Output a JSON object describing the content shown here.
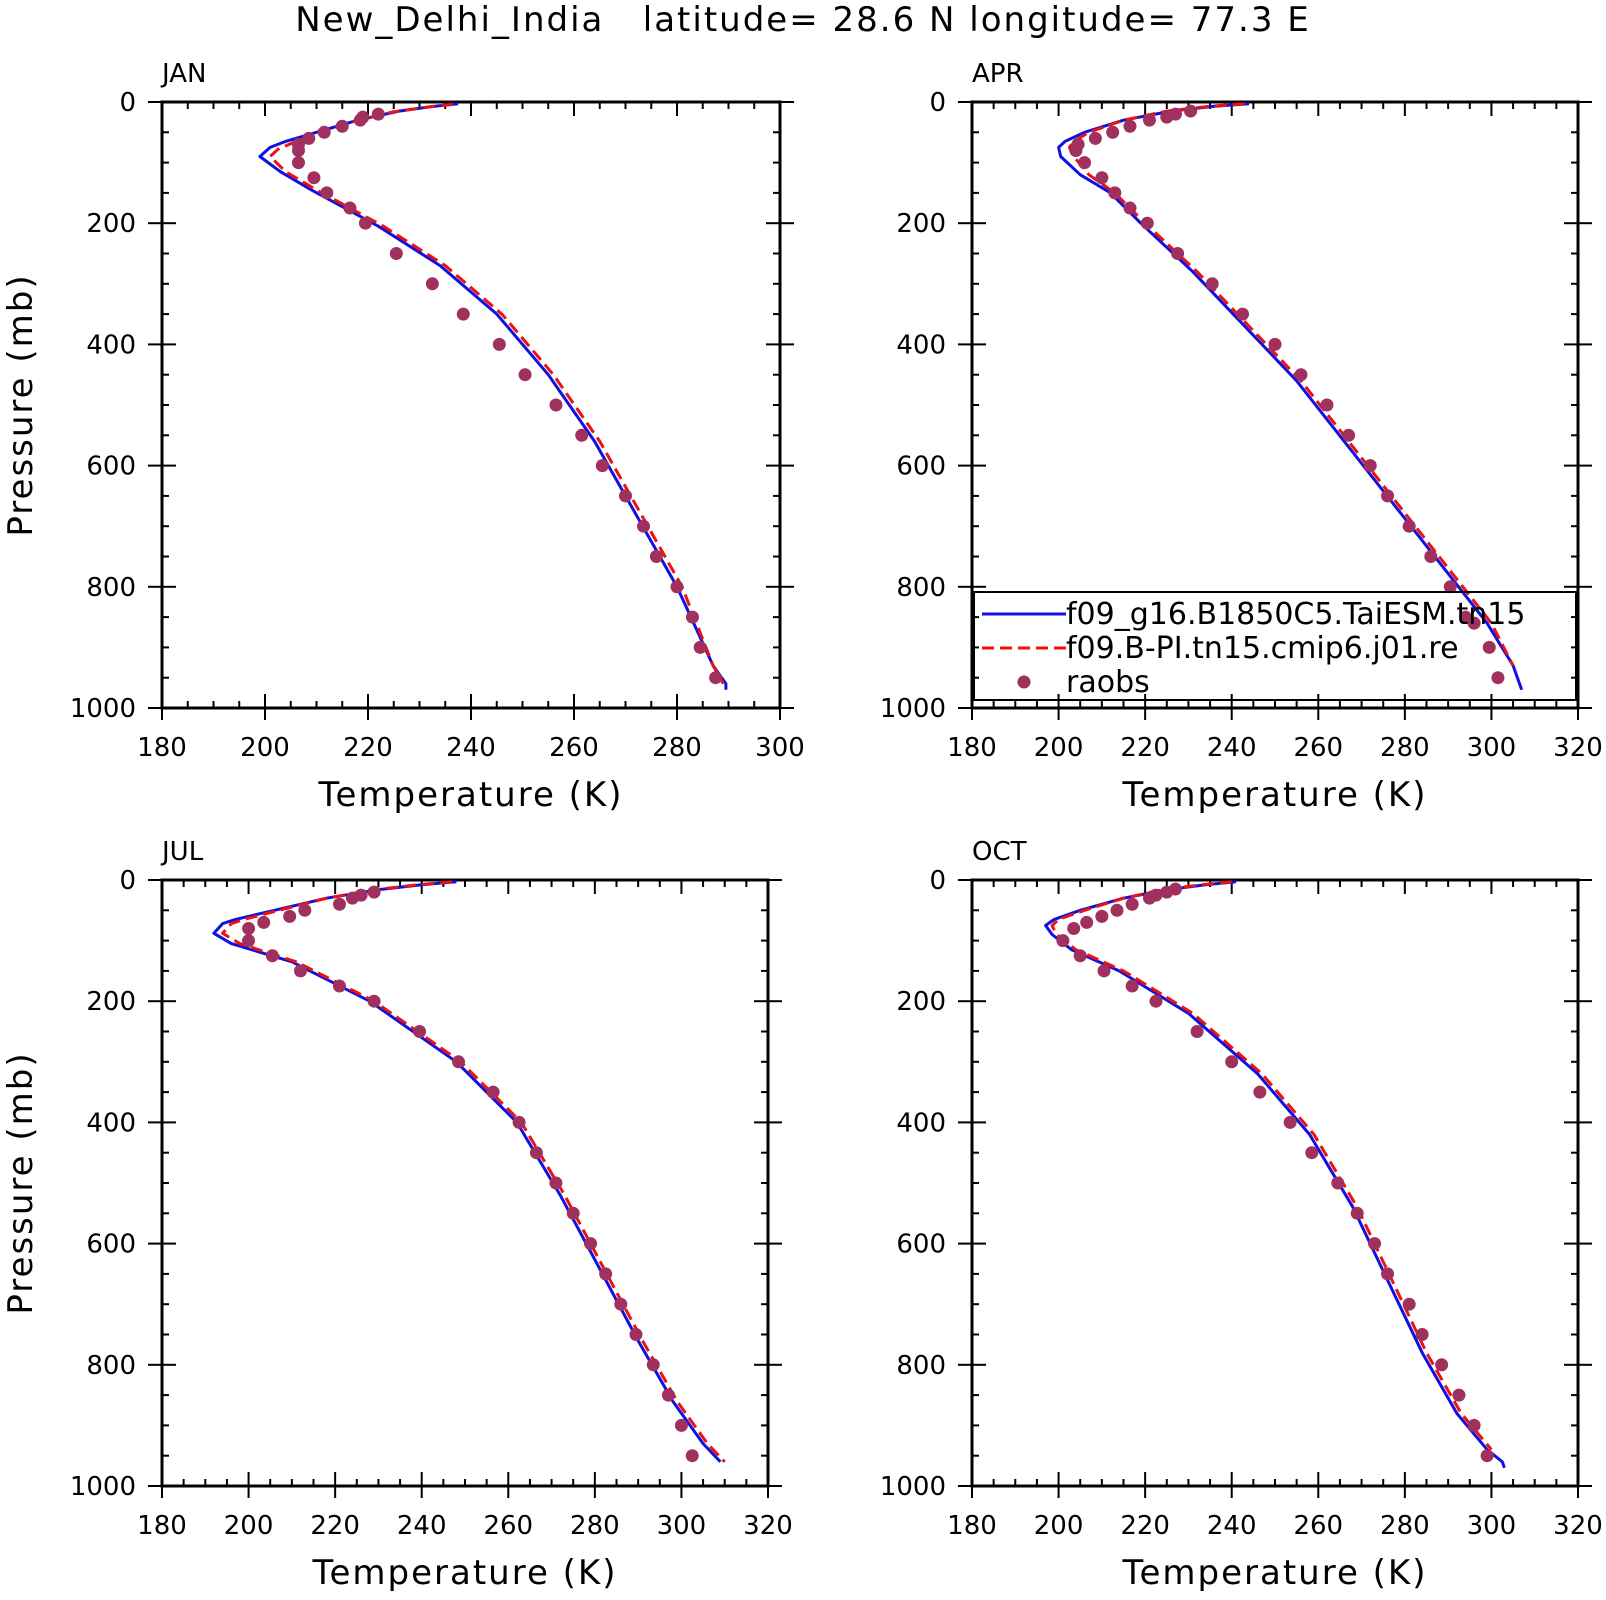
{
  "figure": {
    "title": "New_Delhi_India   latitude= 28.6 N longitude= 77.3 E"
  },
  "colors": {
    "model_a": "#1010e0",
    "model_b": "#ee1111",
    "obs": "#a0305e",
    "axes": "#000000"
  },
  "chart_data": [
    {
      "type": "line",
      "panel_label": "JAN",
      "xlabel": "Temperature (K)",
      "ylabel": "Pressure (mb)",
      "xlim": [
        180,
        300
      ],
      "ylim": [
        1000,
        0
      ],
      "y_inverted": true,
      "x_ticks": [
        180,
        200,
        220,
        240,
        260,
        280,
        300
      ],
      "y_ticks": [
        0,
        200,
        400,
        600,
        800,
        1000
      ],
      "legend": false,
      "series": [
        {
          "name": "f09_g16.B1850C5.TaiESM.tn15",
          "style": "solid",
          "x": [
            237.5,
            233,
            226,
            218,
            210,
            204,
            201,
            199,
            203,
            209,
            222,
            234,
            245,
            255,
            264,
            272,
            280,
            287,
            289.5,
            289.5
          ],
          "y": [
            3,
            7,
            15,
            30,
            50,
            65,
            75,
            90,
            115,
            145,
            205,
            270,
            350,
            450,
            560,
            680,
            800,
            930,
            960,
            970
          ]
        },
        {
          "name": "f09.B-PI.tn15.cmip6.j01.re",
          "style": "dashed",
          "x": [
            236.5,
            232,
            225,
            218,
            211,
            206,
            202.5,
            201,
            204,
            210,
            223,
            235,
            246,
            256,
            265,
            273,
            281,
            287,
            289
          ],
          "y": [
            4,
            8,
            16,
            30,
            50,
            65,
            78,
            90,
            115,
            145,
            205,
            270,
            350,
            450,
            560,
            680,
            800,
            930,
            960
          ]
        },
        {
          "name": "raobs",
          "style": "markers",
          "x": [
            222,
            219,
            218.5,
            215,
            211.5,
            208.5,
            206.5,
            206.5,
            206.5,
            209.5,
            212,
            216.5,
            219.5,
            225.5,
            232.5,
            238.5,
            245.5,
            250.5,
            256.5,
            261.5,
            265.5,
            270,
            273.5,
            276,
            280,
            283,
            284.5,
            287.5
          ],
          "y": [
            20,
            25,
            30,
            40,
            50,
            60,
            70,
            80,
            100,
            125,
            150,
            175,
            200,
            250,
            300,
            350,
            400,
            450,
            500,
            550,
            600,
            650,
            700,
            750,
            800,
            850,
            900,
            950
          ]
        }
      ]
    },
    {
      "type": "line",
      "panel_label": "APR",
      "xlabel": "Temperature (K)",
      "ylabel": "",
      "xlim": [
        180,
        320
      ],
      "ylim": [
        1000,
        0
      ],
      "y_inverted": true,
      "x_ticks": [
        180,
        200,
        220,
        240,
        260,
        280,
        300,
        320
      ],
      "y_ticks": [
        0,
        200,
        400,
        600,
        800,
        1000
      ],
      "legend": true,
      "legend_position": "lower-right",
      "legend_entries": [
        "f09_g16.B1850C5.TaiESM.tn15",
        "f09.B-PI.tn15.cmip6.j01.re",
        "raobs"
      ],
      "series": [
        {
          "name": "f09_g16.B1850C5.TaiESM.tn15",
          "style": "solid",
          "x": [
            244,
            236,
            226,
            215,
            206,
            201.5,
            200,
            200.5,
            205,
            212,
            219,
            231,
            243,
            255,
            266,
            277,
            288,
            299,
            305,
            307
          ],
          "y": [
            3,
            7,
            15,
            30,
            50,
            65,
            75,
            90,
            120,
            150,
            200,
            280,
            370,
            460,
            560,
            660,
            760,
            860,
            930,
            970
          ]
        },
        {
          "name": "f09.B-PI.tn15.cmip6.j01.re",
          "style": "dashed",
          "x": [
            243,
            235,
            225,
            215,
            207,
            203.5,
            202.5,
            203.5,
            207,
            213,
            220,
            232,
            244,
            256,
            267,
            278,
            289,
            300,
            305
          ],
          "y": [
            3,
            7,
            15,
            30,
            50,
            65,
            75,
            90,
            120,
            150,
            200,
            280,
            370,
            460,
            560,
            660,
            760,
            860,
            930
          ]
        },
        {
          "name": "raobs",
          "style": "markers",
          "x": [
            230.5,
            227,
            225,
            221,
            216.5,
            212.5,
            208.5,
            204.5,
            204,
            204.5,
            206,
            210,
            213,
            216.5,
            220.5,
            227.5,
            235.5,
            242.5,
            250,
            256,
            262,
            267,
            272,
            276,
            281,
            286,
            290.5,
            294,
            296,
            299.5,
            301.5
          ],
          "y": [
            15,
            20,
            25,
            30,
            40,
            50,
            60,
            70,
            80,
            70,
            100,
            125,
            150,
            175,
            200,
            250,
            300,
            350,
            400,
            450,
            500,
            550,
            600,
            650,
            700,
            750,
            800,
            850,
            860,
            900,
            950
          ]
        }
      ]
    },
    {
      "type": "line",
      "panel_label": "JUL",
      "xlabel": "Temperature (K)",
      "ylabel": "Pressure (mb)",
      "xlim": [
        180,
        320
      ],
      "ylim": [
        1000,
        0
      ],
      "y_inverted": true,
      "x_ticks": [
        180,
        200,
        220,
        240,
        260,
        280,
        300,
        320
      ],
      "y_ticks": [
        0,
        200,
        400,
        600,
        800,
        1000
      ],
      "legend": false,
      "series": [
        {
          "name": "f09_g16.B1850C5.TaiESM.tn15",
          "style": "solid",
          "x": [
            248,
            240,
            230,
            218,
            206,
            197,
            194,
            192,
            196,
            210,
            228,
            248,
            262,
            272,
            281,
            290,
            298,
            305,
            309
          ],
          "y": [
            3,
            8,
            16,
            30,
            50,
            65,
            72,
            88,
            105,
            135,
            200,
            300,
            400,
            520,
            640,
            760,
            860,
            930,
            960
          ]
        },
        {
          "name": "f09.B-PI.tn15.cmip6.j01.re",
          "style": "dashed",
          "x": [
            247,
            239,
            229,
            218,
            207,
            199,
            196,
            194,
            198,
            211,
            229,
            249,
            263,
            273,
            282,
            291,
            299,
            306,
            310
          ],
          "y": [
            3,
            8,
            16,
            30,
            50,
            65,
            72,
            88,
            105,
            135,
            200,
            300,
            400,
            520,
            640,
            760,
            860,
            930,
            960
          ]
        },
        {
          "name": "raobs",
          "style": "markers",
          "x": [
            229,
            226,
            224,
            221,
            213,
            209.5,
            203.5,
            200,
            200,
            205.5,
            212,
            221,
            229,
            239.5,
            248.5,
            256.5,
            262.5,
            266.5,
            271,
            275,
            279,
            282.5,
            286,
            289.5,
            293.5,
            297,
            300,
            302.5
          ],
          "y": [
            20,
            25,
            30,
            40,
            50,
            60,
            70,
            80,
            100,
            125,
            150,
            175,
            200,
            250,
            300,
            350,
            400,
            450,
            500,
            550,
            600,
            650,
            700,
            750,
            800,
            850,
            900,
            950
          ]
        }
      ]
    },
    {
      "type": "line",
      "panel_label": "OCT",
      "xlabel": "Temperature (K)",
      "ylabel": "",
      "xlim": [
        180,
        320
      ],
      "ylim": [
        1000,
        0
      ],
      "y_inverted": true,
      "x_ticks": [
        180,
        200,
        220,
        240,
        260,
        280,
        300,
        320
      ],
      "y_ticks": [
        0,
        200,
        400,
        600,
        800,
        1000
      ],
      "legend": false,
      "series": [
        {
          "name": "f09_g16.B1850C5.TaiESM.tn15",
          "style": "solid",
          "x": [
            241,
            234,
            225,
            215,
            205,
            199,
            197,
            198.5,
            203,
            214,
            230,
            246,
            258,
            268,
            276,
            284,
            292,
            299,
            302.5,
            303
          ],
          "y": [
            3,
            8,
            16,
            30,
            50,
            65,
            75,
            90,
            115,
            150,
            220,
            320,
            420,
            540,
            660,
            780,
            880,
            940,
            960,
            970
          ]
        },
        {
          "name": "f09.B-PI.tn15.cmip6.j01.re",
          "style": "dashed",
          "x": [
            240,
            233,
            224,
            215,
            206,
            200,
            198.5,
            199.5,
            204,
            215,
            231,
            247,
            259,
            269,
            277,
            285,
            293,
            300
          ],
          "y": [
            3,
            8,
            16,
            30,
            50,
            65,
            75,
            90,
            115,
            150,
            220,
            320,
            420,
            540,
            660,
            780,
            880,
            940
          ]
        },
        {
          "name": "raobs",
          "style": "markers",
          "x": [
            227,
            225,
            222.5,
            221,
            217,
            213.5,
            210,
            206.5,
            203.5,
            201,
            205,
            210.5,
            217,
            222.5,
            232,
            240,
            246.5,
            253.5,
            258.5,
            264.5,
            269,
            273,
            276,
            281,
            284,
            288.5,
            292.5,
            296,
            299
          ],
          "y": [
            15,
            20,
            25,
            30,
            40,
            50,
            60,
            70,
            80,
            100,
            125,
            150,
            175,
            200,
            250,
            300,
            350,
            400,
            450,
            500,
            550,
            600,
            650,
            700,
            750,
            800,
            850,
            900,
            950
          ]
        }
      ]
    }
  ]
}
